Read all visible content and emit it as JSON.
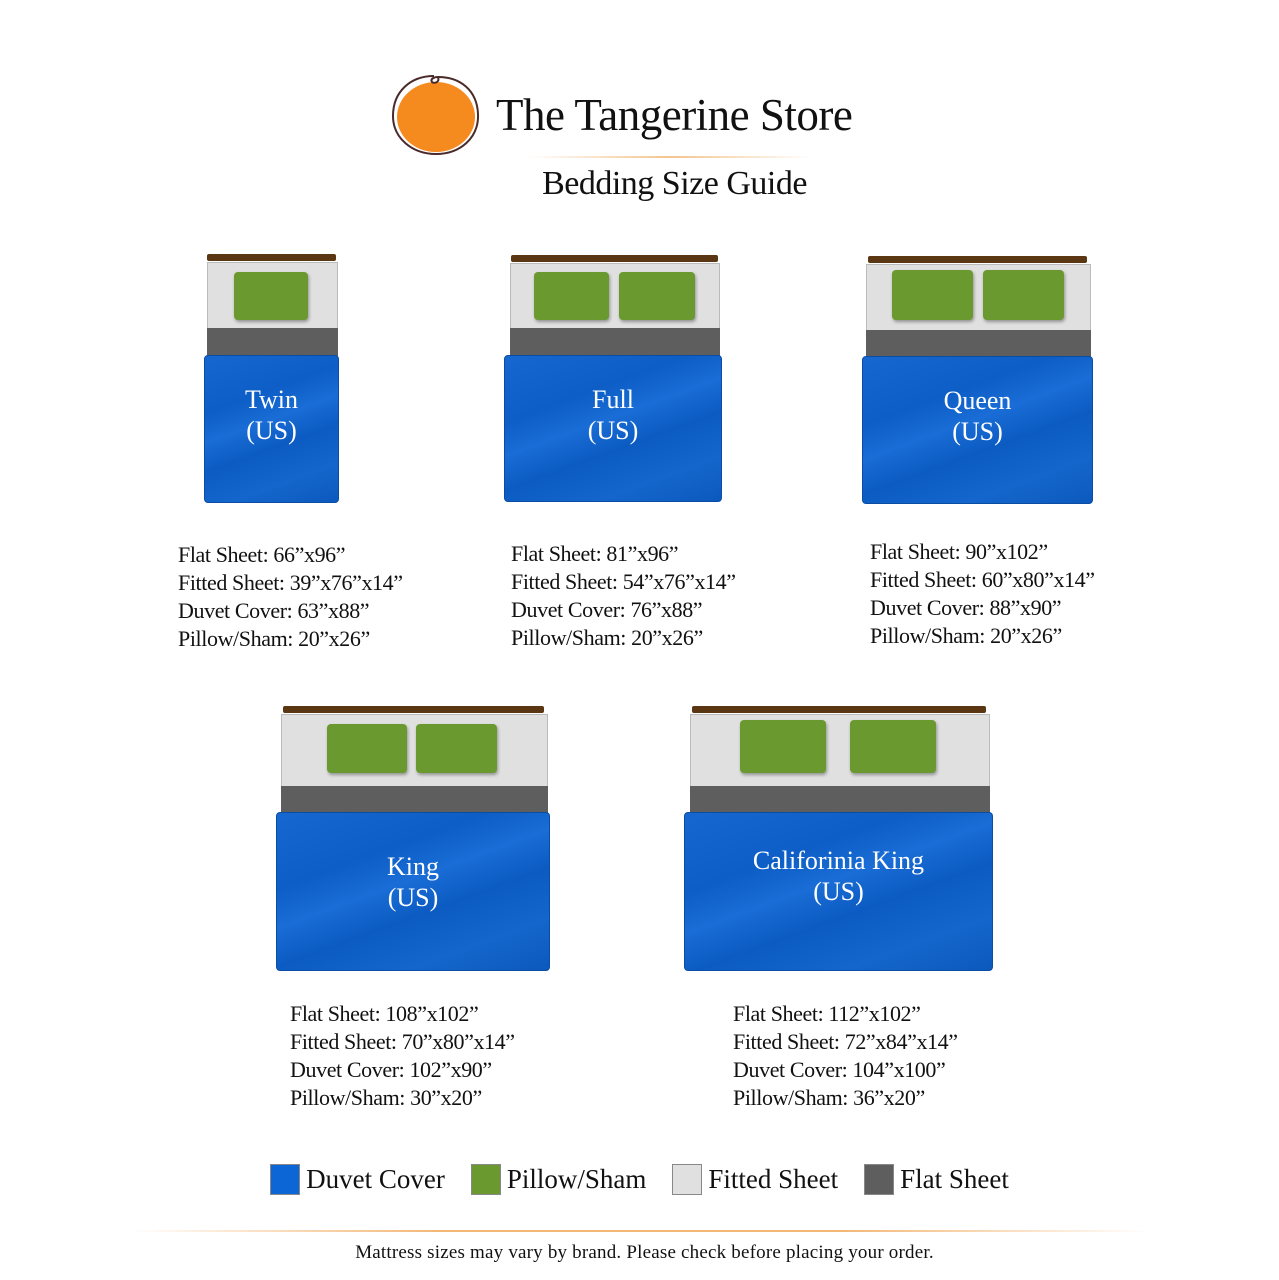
{
  "header": {
    "brand": "The Tangerine Store",
    "subtitle": "Bedding Size Guide"
  },
  "beds": [
    {
      "name": "Twin",
      "region": "(US)",
      "pillows": 1,
      "specs": [
        "Flat Sheet: 66”x96”",
        "Fitted Sheet: 39”x76”x14”",
        "Duvet Cover: 63”x88”",
        "Pillow/Sham: 20”x26”"
      ]
    },
    {
      "name": "Full",
      "region": "(US)",
      "pillows": 2,
      "specs": [
        "Flat Sheet: 81”x96”",
        "Fitted Sheet: 54”x76”x14”",
        "Duvet Cover: 76”x88”",
        "Pillow/Sham: 20”x26”"
      ]
    },
    {
      "name": "Queen",
      "region": "(US)",
      "pillows": 2,
      "specs": [
        "Flat Sheet: 90”x102”",
        "Fitted Sheet: 60”x80”x14”",
        "Duvet Cover: 88”x90”",
        "Pillow/Sham: 20”x26”"
      ]
    },
    {
      "name": "King",
      "region": "(US)",
      "pillows": 2,
      "specs": [
        "Flat Sheet: 108”x102”",
        "Fitted Sheet: 70”x80”x14”",
        "Duvet Cover: 102”x90”",
        "Pillow/Sham: 30”x20”"
      ]
    },
    {
      "name": "Califorinia King",
      "region": "(US)",
      "pillows": 2,
      "specs": [
        "Flat Sheet: 112”x102”",
        "Fitted Sheet: 72”x84”x14”",
        "Duvet Cover: 104”x100”",
        "Pillow/Sham: 36”x20”"
      ]
    }
  ],
  "legend": [
    {
      "label": "Duvet Cover",
      "color": "#0d66d6"
    },
    {
      "label": "Pillow/Sham",
      "color": "#6a9a2f"
    },
    {
      "label": "Fitted Sheet",
      "color": "#e1e0e0"
    },
    {
      "label": "Flat Sheet",
      "color": "#5e5e5e"
    }
  ],
  "colors": {
    "tangerine": "#f58a1f",
    "headboard": "#5a3613"
  },
  "footer": {
    "note": "Mattress sizes may vary by brand. Please check before placing your order."
  }
}
